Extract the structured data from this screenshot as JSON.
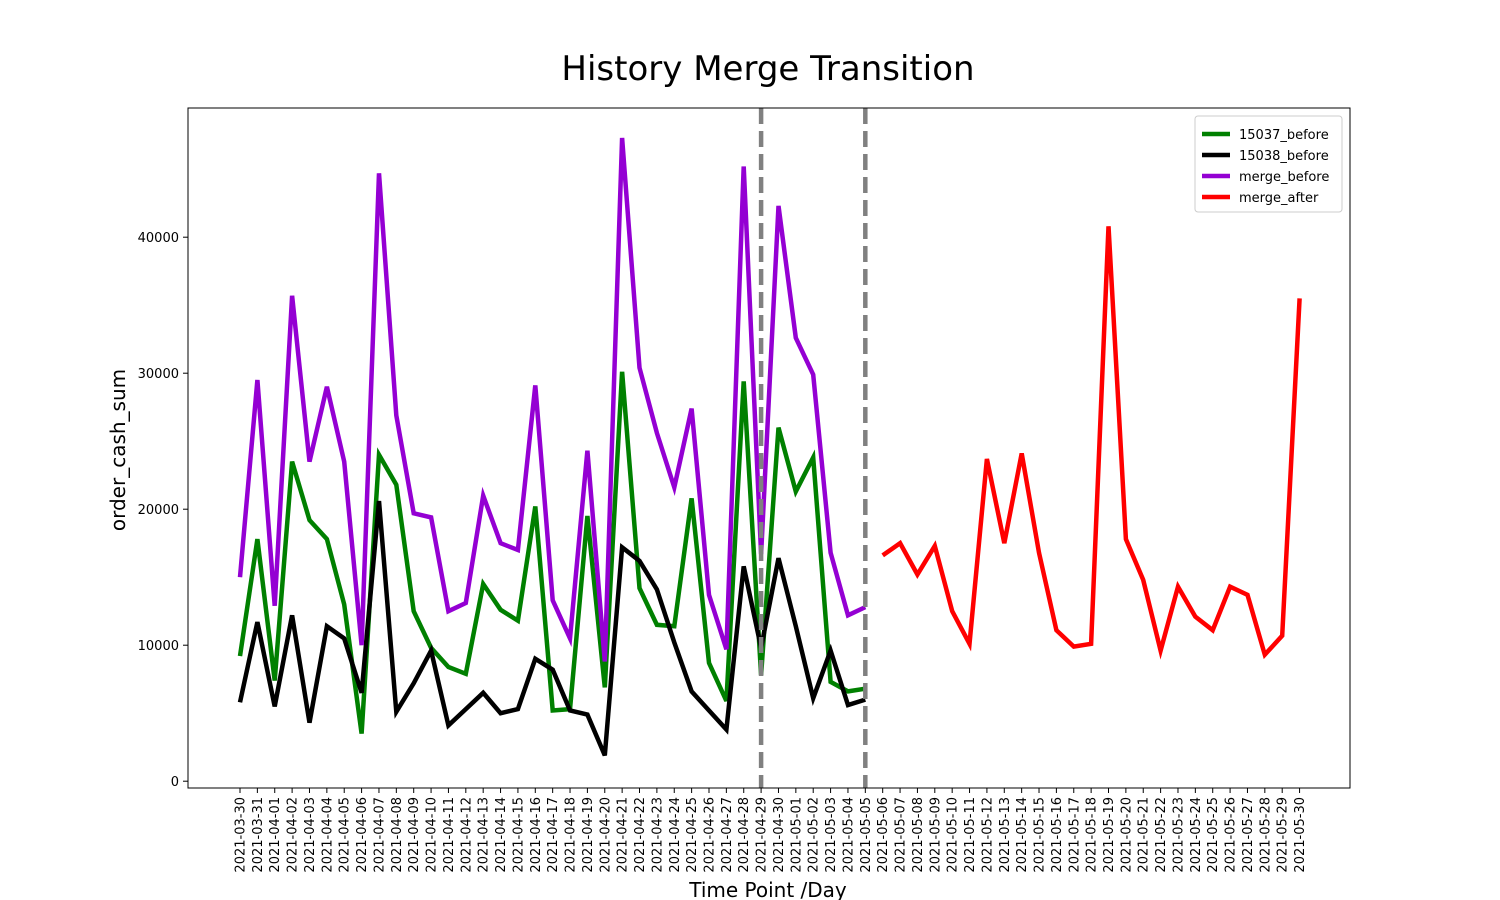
{
  "chart_data": {
    "type": "line",
    "title": "History Merge Transition",
    "xlabel": "Time Point /Day",
    "ylabel": "order_cash_sum",
    "ylim": [
      -500,
      49500
    ],
    "yticks": [
      0,
      10000,
      20000,
      30000,
      40000
    ],
    "legend_position": "top-right",
    "grid": false,
    "x": [
      "2021-03-30",
      "2021-03-31",
      "2021-04-01",
      "2021-04-02",
      "2021-04-03",
      "2021-04-04",
      "2021-04-05",
      "2021-04-06",
      "2021-04-07",
      "2021-04-08",
      "2021-04-09",
      "2021-04-10",
      "2021-04-11",
      "2021-04-12",
      "2021-04-13",
      "2021-04-14",
      "2021-04-15",
      "2021-04-16",
      "2021-04-17",
      "2021-04-18",
      "2021-04-19",
      "2021-04-20",
      "2021-04-21",
      "2021-04-22",
      "2021-04-23",
      "2021-04-24",
      "2021-04-25",
      "2021-04-26",
      "2021-04-27",
      "2021-04-28",
      "2021-04-29",
      "2021-04-30",
      "2021-05-01",
      "2021-05-02",
      "2021-05-03",
      "2021-05-04",
      "2021-05-05",
      "2021-05-06",
      "2021-05-07",
      "2021-05-08",
      "2021-05-09",
      "2021-05-10",
      "2021-05-11",
      "2021-05-12",
      "2021-05-13",
      "2021-05-14",
      "2021-05-15",
      "2021-05-16",
      "2021-05-17",
      "2021-05-18",
      "2021-05-19",
      "2021-05-20",
      "2021-05-21",
      "2021-05-22",
      "2021-05-23",
      "2021-05-24",
      "2021-05-25",
      "2021-05-26",
      "2021-05-27",
      "2021-05-28",
      "2021-05-29",
      "2021-05-30"
    ],
    "vlines": [
      "2021-04-29",
      "2021-05-05"
    ],
    "series": [
      {
        "name": "15037_before",
        "color": "#008000",
        "x": [
          "2021-03-30",
          "2021-03-31",
          "2021-04-01",
          "2021-04-02",
          "2021-04-03",
          "2021-04-04",
          "2021-04-05",
          "2021-04-06",
          "2021-04-07",
          "2021-04-08",
          "2021-04-09",
          "2021-04-10",
          "2021-04-11",
          "2021-04-12",
          "2021-04-13",
          "2021-04-14",
          "2021-04-15",
          "2021-04-16",
          "2021-04-17",
          "2021-04-18",
          "2021-04-19",
          "2021-04-20",
          "2021-04-21",
          "2021-04-22",
          "2021-04-23",
          "2021-04-24",
          "2021-04-25",
          "2021-04-26",
          "2021-04-27",
          "2021-04-28",
          "2021-04-29",
          "2021-04-30",
          "2021-05-01",
          "2021-05-02",
          "2021-05-03",
          "2021-05-04",
          "2021-05-05"
        ],
        "values": [
          9200,
          17800,
          7400,
          23500,
          19200,
          17800,
          13000,
          3500,
          24000,
          21800,
          12500,
          9800,
          8400,
          7900,
          14500,
          12600,
          11800,
          20200,
          5200,
          5300,
          19500,
          6900,
          30100,
          14200,
          11500,
          11400,
          20800,
          8700,
          5900,
          29400,
          7800,
          26000,
          21300,
          23800,
          7300,
          6600,
          6800
        ]
      },
      {
        "name": "15038_before",
        "color": "#000000",
        "x": [
          "2021-03-30",
          "2021-03-31",
          "2021-04-01",
          "2021-04-02",
          "2021-04-03",
          "2021-04-04",
          "2021-04-05",
          "2021-04-06",
          "2021-04-07",
          "2021-04-08",
          "2021-04-09",
          "2021-04-10",
          "2021-04-11",
          "2021-04-12",
          "2021-04-13",
          "2021-04-14",
          "2021-04-15",
          "2021-04-16",
          "2021-04-17",
          "2021-04-18",
          "2021-04-19",
          "2021-04-20",
          "2021-04-21",
          "2021-04-22",
          "2021-04-23",
          "2021-04-24",
          "2021-04-25",
          "2021-04-26",
          "2021-04-27",
          "2021-04-28",
          "2021-04-29",
          "2021-04-30",
          "2021-05-01",
          "2021-05-02",
          "2021-05-03",
          "2021-05-04",
          "2021-05-05"
        ],
        "values": [
          5800,
          11700,
          5500,
          12200,
          4300,
          11400,
          10500,
          6500,
          20600,
          5100,
          7200,
          9600,
          4100,
          5300,
          6500,
          5000,
          5300,
          9000,
          8200,
          5200,
          4900,
          1900,
          17200,
          16200,
          14100,
          10200,
          6600,
          5200,
          3800,
          15800,
          9800,
          16400,
          11400,
          6100,
          9600,
          5600,
          6000
        ]
      },
      {
        "name": "merge_before",
        "color": "#9400D3",
        "x": [
          "2021-03-30",
          "2021-03-31",
          "2021-04-01",
          "2021-04-02",
          "2021-04-03",
          "2021-04-04",
          "2021-04-05",
          "2021-04-06",
          "2021-04-07",
          "2021-04-08",
          "2021-04-09",
          "2021-04-10",
          "2021-04-11",
          "2021-04-12",
          "2021-04-13",
          "2021-04-14",
          "2021-04-15",
          "2021-04-16",
          "2021-04-17",
          "2021-04-18",
          "2021-04-19",
          "2021-04-20",
          "2021-04-21",
          "2021-04-22",
          "2021-04-23",
          "2021-04-24",
          "2021-04-25",
          "2021-04-26",
          "2021-04-27",
          "2021-04-28",
          "2021-04-29",
          "2021-04-30",
          "2021-05-01",
          "2021-05-02",
          "2021-05-03",
          "2021-05-04",
          "2021-05-05"
        ],
        "values": [
          15000,
          29500,
          12900,
          35700,
          23500,
          29000,
          23500,
          10000,
          44700,
          26900,
          19700,
          19400,
          12500,
          13100,
          21000,
          17500,
          17000,
          29100,
          13300,
          10500,
          24300,
          8800,
          47300,
          30400,
          25600,
          21600,
          27400,
          13700,
          9700,
          45200,
          16700,
          42300,
          32600,
          29900,
          16800,
          12200,
          12800
        ]
      },
      {
        "name": "merge_after",
        "color": "#FF0000",
        "x": [
          "2021-05-06",
          "2021-05-07",
          "2021-05-08",
          "2021-05-09",
          "2021-05-10",
          "2021-05-11",
          "2021-05-12",
          "2021-05-13",
          "2021-05-14",
          "2021-05-15",
          "2021-05-16",
          "2021-05-17",
          "2021-05-18",
          "2021-05-19",
          "2021-05-20",
          "2021-05-21",
          "2021-05-22",
          "2021-05-23",
          "2021-05-24",
          "2021-05-25",
          "2021-05-26",
          "2021-05-27",
          "2021-05-28",
          "2021-05-29",
          "2021-05-30"
        ],
        "values": [
          16600,
          17500,
          15200,
          17300,
          12500,
          10100,
          23700,
          17500,
          24100,
          16800,
          11100,
          9900,
          10100,
          40800,
          17800,
          14800,
          9600,
          14300,
          12100,
          11100,
          14300,
          13700,
          9300,
          10700,
          35500
        ]
      }
    ]
  }
}
